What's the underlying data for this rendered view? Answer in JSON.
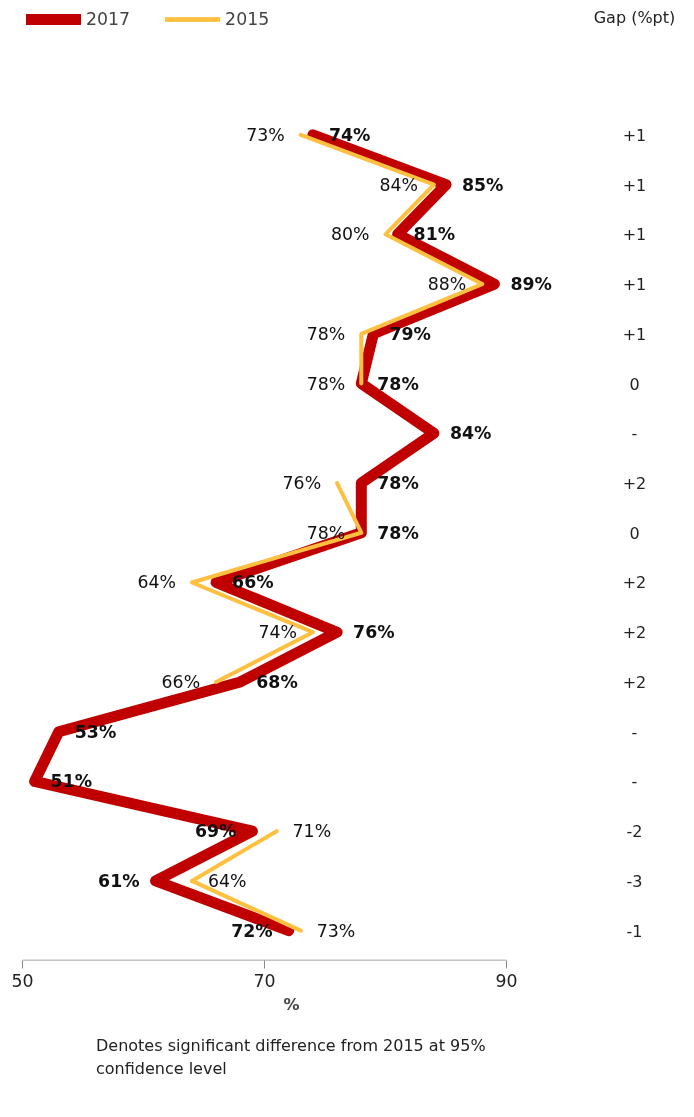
{
  "chart_data": {
    "type": "line",
    "orientation": "horizontal",
    "categories": [
      null,
      null,
      null,
      null,
      null,
      null,
      null,
      null,
      null,
      null,
      null,
      null,
      null,
      null,
      null,
      null,
      null
    ],
    "series": [
      {
        "name": "2017",
        "color": "#c00000",
        "values": [
          74,
          85,
          81,
          89,
          79,
          78,
          84,
          78,
          78,
          66,
          76,
          68,
          53,
          51,
          69,
          61,
          72
        ],
        "value_labels": [
          "74%",
          "85%",
          "81%",
          "89%",
          "79%",
          "78%",
          "84%",
          "78%",
          "78%",
          "66%",
          "76%",
          "68%",
          "53%",
          "51%",
          "69%",
          "61%",
          "72%"
        ]
      },
      {
        "name": "2015",
        "color": "#ffbf3f",
        "values": [
          73,
          84,
          80,
          88,
          78,
          78,
          null,
          76,
          78,
          64,
          74,
          66,
          null,
          null,
          71,
          64,
          73
        ],
        "value_labels": [
          "73%",
          "84%",
          "80%",
          "88%",
          "78%",
          "78%",
          null,
          "76%",
          "78%",
          "64%",
          "74%",
          "66%",
          null,
          null,
          "71%",
          "64%",
          "73%"
        ]
      }
    ],
    "xlim": [
      50,
      90
    ],
    "xticks": [
      50,
      70,
      90
    ],
    "xlabel": "%",
    "tick_labels": "x",
    "grid": false,
    "legend": "top left",
    "data_labels": true,
    "annotations": [
      "Gap (%pt)",
      "+1",
      "+1",
      "+1",
      "+1",
      "+1",
      "0",
      "-",
      "+2",
      "0",
      "+2",
      "+2",
      "+2",
      "-",
      "-",
      "-2",
      "-3",
      "-1",
      "Denotes significant difference from 2015 at 95% confidence level"
    ]
  }
}
